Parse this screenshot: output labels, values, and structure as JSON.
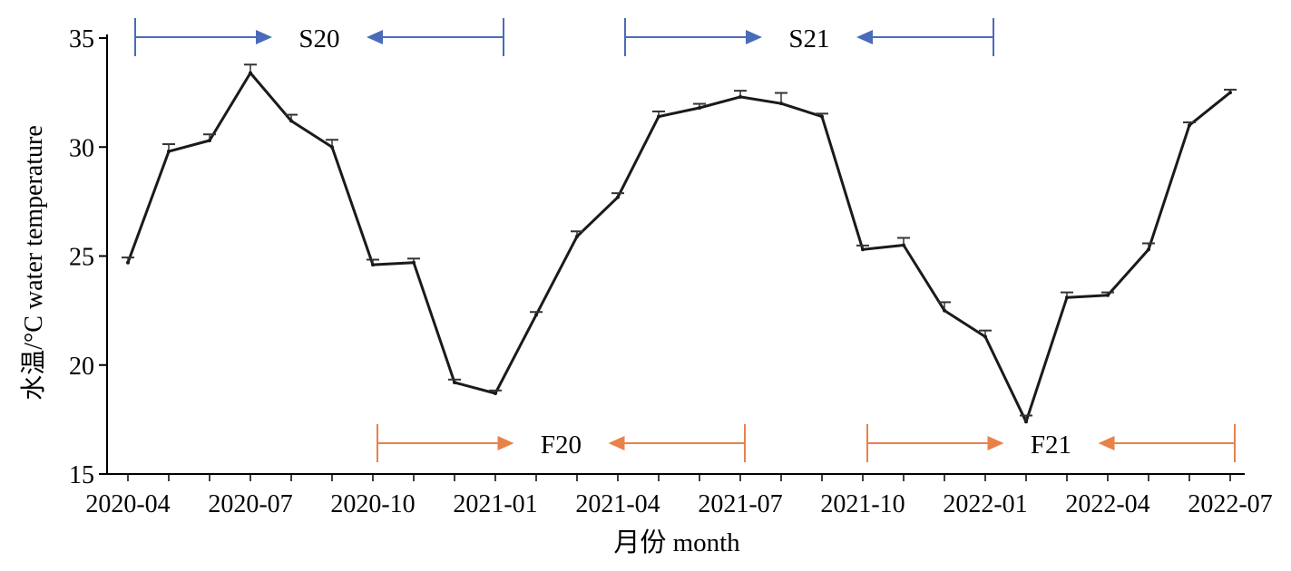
{
  "chart_data": {
    "type": "line",
    "xlabel": "月份 month",
    "ylabel": "水温/°C water temperature",
    "ylim": [
      15,
      35
    ],
    "yticks": [
      15,
      20,
      25,
      30,
      35
    ],
    "x_tick_labels": [
      "2020-04",
      "2020-07",
      "2020-10",
      "2021-01",
      "2021-04",
      "2021-07",
      "2021-10",
      "2022-01",
      "2022-04",
      "2022-07"
    ],
    "x": [
      "2020-04",
      "2020-05",
      "2020-06",
      "2020-07",
      "2020-08",
      "2020-09",
      "2020-10",
      "2020-11",
      "2020-12",
      "2021-01",
      "2021-02",
      "2021-03",
      "2021-04",
      "2021-05",
      "2021-06",
      "2021-07",
      "2021-08",
      "2021-09",
      "2021-10",
      "2021-11",
      "2021-12",
      "2022-01",
      "2022-02",
      "2022-03",
      "2022-04",
      "2022-05",
      "2022-06",
      "2022-07"
    ],
    "series": [
      {
        "values": [
          24.7,
          29.8,
          30.3,
          33.4,
          31.2,
          30.0,
          24.6,
          24.7,
          19.2,
          18.7,
          22.3,
          25.9,
          27.7,
          31.4,
          31.8,
          32.3,
          32.0,
          31.4,
          25.3,
          25.5,
          22.5,
          21.3,
          17.4,
          23.1,
          23.2,
          25.3,
          31.0,
          32.5
        ],
        "errors": [
          0.15,
          0.25,
          0.2,
          0.3,
          0.2,
          0.25,
          0.15,
          0.1,
          0.05,
          0.05,
          0.05,
          0.15,
          0.1,
          0.15,
          0.1,
          0.2,
          0.4,
          0.05,
          0.1,
          0.25,
          0.3,
          0.2,
          0.2,
          0.15,
          0.05,
          0.2,
          0.05,
          0.05
        ],
        "color": "#1a1a1a"
      }
    ],
    "annotations": [
      {
        "label": "S20",
        "start": "2020-04",
        "end": "2021-01",
        "color": "#4a6bb8",
        "position": "top"
      },
      {
        "label": "S21",
        "start": "2021-04",
        "end": "2022-01",
        "color": "#4a6bb8",
        "position": "top"
      },
      {
        "label": "F20",
        "start": "2020-10",
        "end": "2021-07",
        "color": "#e8824a",
        "position": "bottom"
      },
      {
        "label": "F21",
        "start": "2021-10",
        "end": "2022-07",
        "color": "#e8824a",
        "position": "bottom"
      }
    ]
  }
}
